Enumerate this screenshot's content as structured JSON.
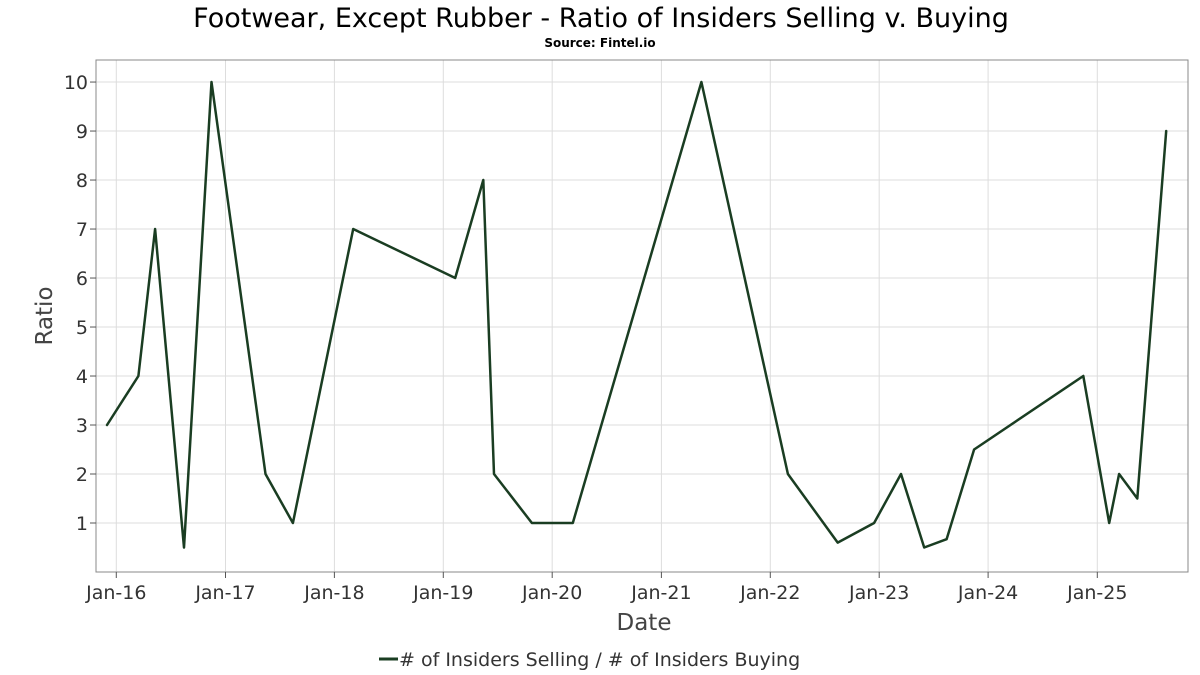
{
  "chart_data": {
    "type": "line",
    "title": "Footwear, Except Rubber - Ratio of Insiders Selling v. Buying",
    "subtitle": "Source: Fintel.io",
    "xlabel": "Date",
    "ylabel": "Ratio",
    "x_ticks": [
      "Jan-16",
      "Jan-17",
      "Jan-18",
      "Jan-19",
      "Jan-20",
      "Jan-21",
      "Jan-22",
      "Jan-23",
      "Jan-24",
      "Jan-25"
    ],
    "y_ticks": [
      1,
      2,
      3,
      4,
      5,
      6,
      7,
      8,
      9,
      10
    ],
    "xlim": [
      "2015-10-25",
      "2025-11-01"
    ],
    "ylim": [
      0,
      10.45
    ],
    "grid": true,
    "legend_position": "bottom-center",
    "series": [
      {
        "name": "# of Insiders Selling / # of Insiders Buying",
        "color": "#1a3d22",
        "points": [
          {
            "x": "2015-12-01",
            "y": 3
          },
          {
            "x": "2016-03-15",
            "y": 4
          },
          {
            "x": "2016-05-10",
            "y": 7
          },
          {
            "x": "2016-08-15",
            "y": 0.5
          },
          {
            "x": "2016-11-15",
            "y": 10
          },
          {
            "x": "2017-05-15",
            "y": 2
          },
          {
            "x": "2017-08-15",
            "y": 1
          },
          {
            "x": "2018-03-05",
            "y": 7
          },
          {
            "x": "2019-02-10",
            "y": 6
          },
          {
            "x": "2019-05-15",
            "y": 8
          },
          {
            "x": "2019-06-20",
            "y": 2
          },
          {
            "x": "2019-10-25",
            "y": 1
          },
          {
            "x": "2020-03-10",
            "y": 1
          },
          {
            "x": "2021-05-15",
            "y": 10
          },
          {
            "x": "2022-03-01",
            "y": 2
          },
          {
            "x": "2022-08-15",
            "y": 0.6
          },
          {
            "x": "2022-12-15",
            "y": 1
          },
          {
            "x": "2023-03-15",
            "y": 2
          },
          {
            "x": "2023-06-01",
            "y": 0.5
          },
          {
            "x": "2023-08-15",
            "y": 0.67
          },
          {
            "x": "2023-11-15",
            "y": 2.5
          },
          {
            "x": "2024-11-15",
            "y": 4
          },
          {
            "x": "2025-02-10",
            "y": 1
          },
          {
            "x": "2025-03-15",
            "y": 2
          },
          {
            "x": "2025-05-15",
            "y": 1.5
          },
          {
            "x": "2025-08-20",
            "y": 9
          }
        ]
      }
    ]
  }
}
